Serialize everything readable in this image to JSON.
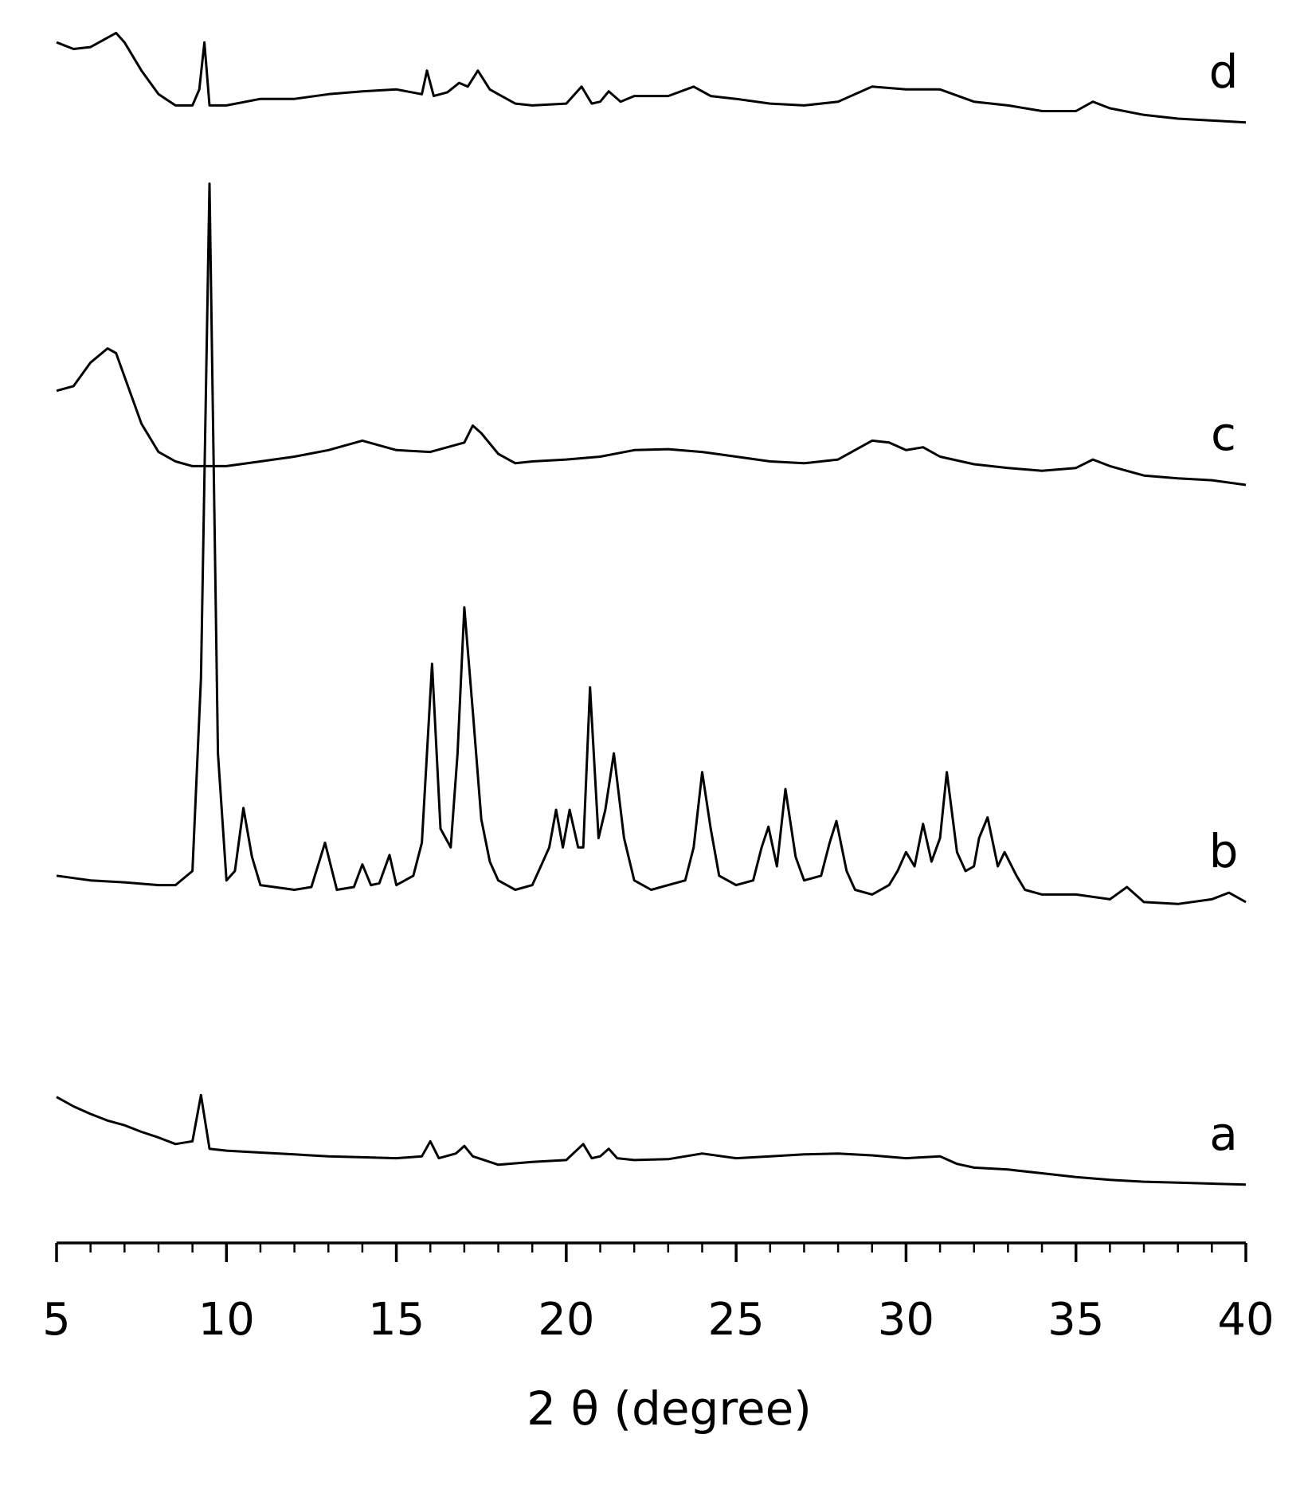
{
  "chart_data": {
    "type": "line",
    "x_label": "2 θ (degree)",
    "xlim": [
      5,
      40
    ],
    "xticks": [
      5,
      10,
      15,
      20,
      25,
      30,
      35,
      40
    ],
    "xminorticks": [
      5,
      6,
      7,
      8,
      9,
      10,
      11,
      12,
      13,
      14,
      15,
      16,
      17,
      18,
      19,
      20,
      21,
      22,
      23,
      24,
      25,
      26,
      27,
      28,
      29,
      30,
      31,
      32,
      33,
      34,
      35,
      36,
      37,
      38,
      39,
      40
    ],
    "ylim": [
      0,
      1320
    ],
    "color": "#000000",
    "series": [
      {
        "name": "a",
        "color": "#000000",
        "x": [
          5,
          5.5,
          6,
          6.5,
          7,
          7.5,
          8,
          8.5,
          9,
          9.25,
          9.5,
          10,
          11,
          12,
          13,
          14,
          15,
          15.75,
          16,
          16.25,
          16.75,
          17,
          17.25,
          18,
          19,
          20,
          20.5,
          20.75,
          21,
          21.25,
          21.5,
          22,
          23,
          24,
          25,
          26,
          27,
          28,
          29,
          30,
          31,
          31.5,
          32,
          33,
          34,
          35,
          36,
          37,
          38,
          39,
          40
        ],
        "values": [
          155,
          145,
          137,
          130,
          125,
          118,
          112,
          105,
          108,
          157,
          100,
          98,
          96,
          94,
          92,
          91,
          90,
          92,
          108,
          90,
          95,
          103,
          92,
          83,
          86,
          88,
          105,
          90,
          92,
          100,
          90,
          88,
          89,
          95,
          90,
          92,
          94,
          95,
          93,
          90,
          92,
          84,
          80,
          78,
          74,
          70,
          67,
          65,
          64,
          63,
          62
        ]
      },
      {
        "name": "b",
        "color": "#000000",
        "x": [
          5,
          6,
          7,
          8,
          8.5,
          9,
          9.25,
          9.5,
          9.75,
          10,
          10.25,
          10.5,
          10.75,
          11,
          12,
          12.5,
          12.9,
          13.25,
          13.75,
          14,
          14.25,
          14.5,
          14.8,
          15,
          15.5,
          15.75,
          16.05,
          16.3,
          16.6,
          16.8,
          17,
          17.25,
          17.5,
          17.75,
          18,
          18.5,
          19,
          19.25,
          19.5,
          19.7,
          19.9,
          20.1,
          20.35,
          20.5,
          20.7,
          20.95,
          21.15,
          21.4,
          21.7,
          22,
          22.5,
          23,
          23.5,
          23.75,
          24,
          24.25,
          24.5,
          25,
          25.5,
          25.75,
          25.95,
          26.2,
          26.45,
          26.75,
          27,
          27.5,
          27.75,
          27.95,
          28.25,
          28.5,
          29,
          29.5,
          29.75,
          30,
          30.25,
          30.5,
          30.75,
          31,
          31.2,
          31.5,
          31.75,
          32,
          32.15,
          32.4,
          32.7,
          32.9,
          33.25,
          33.5,
          34,
          35,
          36,
          36.5,
          37,
          38,
          39,
          39.5,
          40
        ],
        "values": [
          390,
          385,
          383,
          380,
          380,
          395,
          600,
          1125,
          520,
          385,
          395,
          462,
          410,
          380,
          375,
          378,
          425,
          375,
          378,
          402,
          380,
          382,
          412,
          380,
          390,
          425,
          615,
          440,
          420,
          520,
          675,
          565,
          450,
          405,
          385,
          375,
          380,
          400,
          420,
          460,
          420,
          460,
          420,
          420,
          590,
          430,
          460,
          520,
          430,
          385,
          375,
          380,
          385,
          420,
          500,
          440,
          390,
          380,
          385,
          420,
          442,
          400,
          482,
          410,
          385,
          390,
          425,
          448,
          395,
          375,
          370,
          380,
          395,
          415,
          400,
          445,
          405,
          430,
          500,
          415,
          395,
          400,
          430,
          452,
          400,
          415,
          390,
          375,
          370,
          370,
          365,
          378,
          362,
          360,
          365,
          372,
          362
        ]
      },
      {
        "name": "c",
        "color": "#000000",
        "x": [
          5,
          5.5,
          6,
          6.5,
          6.75,
          7,
          7.5,
          8,
          8.5,
          9,
          10,
          11,
          12,
          13,
          14,
          15,
          16,
          17,
          17.25,
          17.5,
          18,
          18.5,
          19,
          20,
          21,
          22,
          23,
          24,
          25,
          26,
          27,
          28,
          29,
          29.5,
          30,
          30.5,
          31,
          32,
          33,
          34,
          35,
          35.5,
          36,
          37,
          38,
          39,
          40
        ],
        "values": [
          905,
          910,
          935,
          950,
          945,
          920,
          870,
          840,
          830,
          825,
          825,
          830,
          835,
          842,
          852,
          842,
          840,
          850,
          868,
          860,
          838,
          828,
          830,
          832,
          835,
          842,
          843,
          840,
          835,
          830,
          828,
          832,
          852,
          850,
          842,
          845,
          835,
          827,
          823,
          820,
          823,
          832,
          825,
          815,
          812,
          810,
          805
        ]
      },
      {
        "name": "d",
        "color": "#000000",
        "x": [
          5,
          5.5,
          6,
          6.5,
          6.75,
          7,
          7.5,
          8,
          8.5,
          9,
          9.2,
          9.35,
          9.5,
          10,
          11,
          12,
          13,
          14,
          15,
          15.75,
          15.9,
          16.1,
          16.5,
          16.85,
          17.1,
          17.4,
          17.75,
          18,
          18.5,
          19,
          20,
          20.45,
          20.75,
          21,
          21.25,
          21.6,
          22,
          23,
          23.75,
          24.25,
          25,
          26,
          27,
          28,
          29,
          30,
          31,
          32,
          33,
          34,
          35,
          35.5,
          36,
          37,
          38,
          39,
          40
        ],
        "values": [
          1275,
          1268,
          1270,
          1280,
          1285,
          1275,
          1245,
          1220,
          1208,
          1208,
          1225,
          1275,
          1208,
          1208,
          1215,
          1215,
          1220,
          1223,
          1225,
          1220,
          1245,
          1218,
          1222,
          1232,
          1228,
          1245,
          1225,
          1220,
          1210,
          1208,
          1210,
          1228,
          1210,
          1212,
          1223,
          1212,
          1218,
          1218,
          1228,
          1218,
          1215,
          1210,
          1208,
          1212,
          1228,
          1225,
          1225,
          1212,
          1208,
          1202,
          1202,
          1212,
          1205,
          1198,
          1194,
          1192,
          1190
        ]
      }
    ]
  }
}
